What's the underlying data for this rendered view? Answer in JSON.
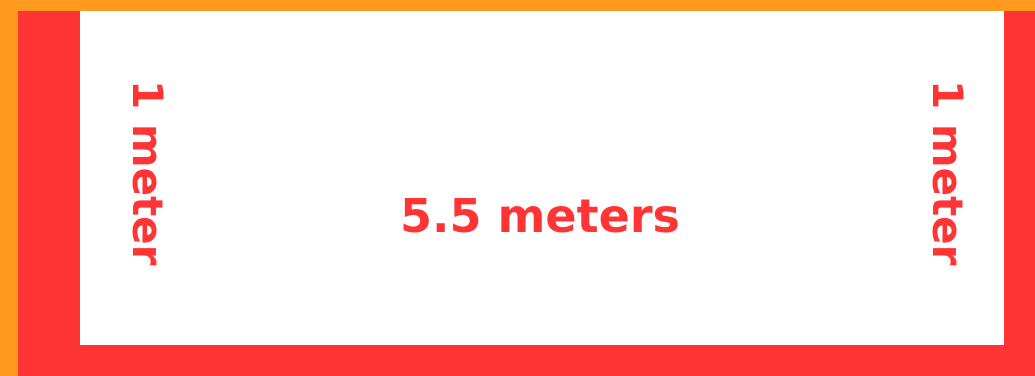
{
  "colors": {
    "outer_border": "#FF9A1F",
    "frame": "#FF3535",
    "panel": "#FFFFFF",
    "text": "#FF3535"
  },
  "labels": {
    "width": "5.5  meters",
    "left_height": "1 meter",
    "right_height": "1 meter"
  }
}
